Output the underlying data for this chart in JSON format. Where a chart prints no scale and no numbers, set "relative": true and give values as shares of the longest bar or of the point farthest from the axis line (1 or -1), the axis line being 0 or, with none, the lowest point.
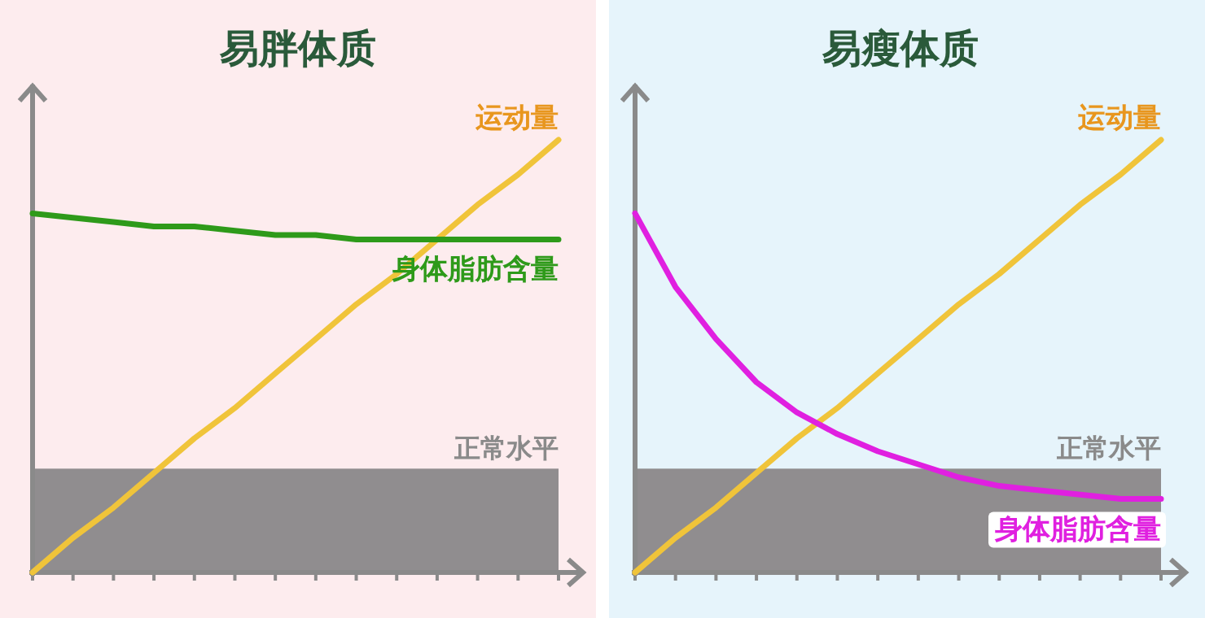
{
  "chart_data": [
    {
      "type": "line",
      "title": "易胖体质",
      "relative": true,
      "categories": [
        null,
        null,
        null,
        null,
        null,
        null,
        null,
        null,
        null,
        null,
        null,
        null,
        null,
        null
      ],
      "series": [
        {
          "name": "运动量",
          "color": "#f0c43a",
          "values": [
            0,
            0.08,
            0.15,
            0.23,
            0.31,
            0.38,
            0.46,
            0.54,
            0.62,
            0.69,
            0.77,
            0.85,
            0.92,
            1
          ]
        },
        {
          "name": "身体脂肪含量",
          "color": "#2e9a1a",
          "values": [
            0.83,
            0.82,
            0.81,
            0.8,
            0.8,
            0.79,
            0.78,
            0.78,
            0.77,
            0.77,
            0.77,
            0.77,
            0.77,
            0.77
          ]
        }
      ],
      "bands": [
        {
          "axis": "y",
          "from": 0,
          "to": 0.24,
          "label": "正常水平",
          "color": "#908d8f"
        }
      ]
    },
    {
      "type": "line",
      "title": "易瘦体质",
      "relative": true,
      "categories": [
        null,
        null,
        null,
        null,
        null,
        null,
        null,
        null,
        null,
        null,
        null,
        null,
        null,
        null
      ],
      "series": [
        {
          "name": "运动量",
          "color": "#f0c43a",
          "values": [
            0,
            0.08,
            0.15,
            0.23,
            0.31,
            0.38,
            0.46,
            0.54,
            0.62,
            0.69,
            0.77,
            0.85,
            0.92,
            1
          ]
        },
        {
          "name": "身体脂肪含量",
          "color": "#e020e0",
          "values": [
            0.83,
            0.66,
            0.54,
            0.44,
            0.37,
            0.32,
            0.28,
            0.25,
            0.22,
            0.2,
            0.19,
            0.18,
            0.17,
            0.17
          ]
        }
      ],
      "bands": [
        {
          "axis": "y",
          "from": 0,
          "to": 0.24,
          "label": "正常水平",
          "color": "#908d8f"
        }
      ]
    }
  ]
}
